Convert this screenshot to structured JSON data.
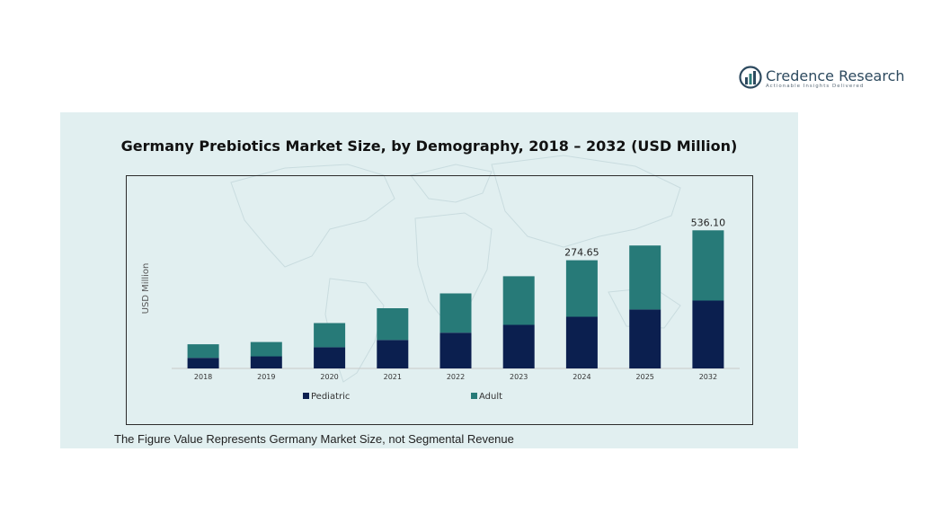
{
  "brand": {
    "name": "Credence Research",
    "tagline": "Actionable Insights Delivered",
    "color": "#2d4a5f"
  },
  "footnote": "The Figure Value Represents Germany Market Size, not Segmental Revenue",
  "chart_data": {
    "type": "bar",
    "stacked": true,
    "title": "Germany Prebiotics Market Size, by Demography, 2018 – 2032 (USD Million)",
    "xlabel": "",
    "ylabel": "USD Million",
    "categories": [
      "2018",
      "2019",
      "2020",
      "2021",
      "2022",
      "2023",
      "2024",
      "2025",
      "2032"
    ],
    "series": [
      {
        "name": "Pediatric",
        "color": "#0b1f4f",
        "values": [
          21.0,
          24.0,
          42.0,
          56.5,
          71.0,
          86.5,
          102.5,
          117.0,
          134.8
        ]
      },
      {
        "name": "Adult",
        "color": "#277a78",
        "values": [
          27.0,
          28.5,
          48.0,
          63.0,
          78.0,
          96.5,
          112.15,
          127.0,
          139.4
        ]
      }
    ],
    "data_labels": [
      {
        "category": "2024",
        "text": "274.65"
      },
      {
        "category": "2032",
        "text": "536.10"
      }
    ],
    "ylim": [
      0,
      280
    ],
    "legend_position": "bottom",
    "grid": false,
    "background_motif": "world-map"
  }
}
